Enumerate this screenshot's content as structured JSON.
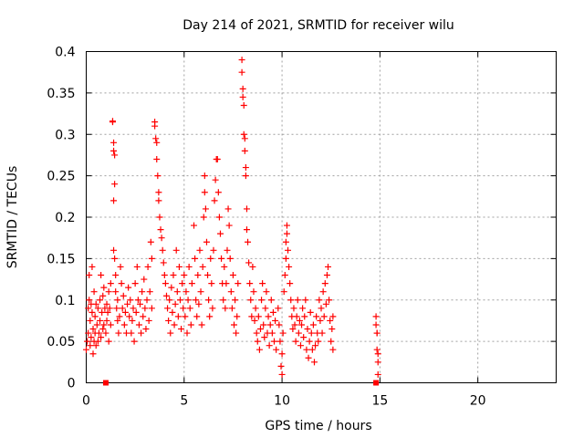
{
  "chart_data": {
    "type": "scatter",
    "title": "Day 214 of 2021, SRMTID for receiver wilu",
    "xlabel": "GPS time / hours",
    "ylabel": "SRMTID / TECUs",
    "xlim": [
      0,
      24
    ],
    "ylim": [
      0,
      0.4
    ],
    "xticks": [
      0,
      5,
      10,
      15,
      20
    ],
    "xtick_labels": [
      "0",
      "5",
      "10",
      "15",
      "20"
    ],
    "yticks": [
      0,
      0.05,
      0.1,
      0.15,
      0.2,
      0.25,
      0.3,
      0.35,
      0.4
    ],
    "ytick_labels": [
      "0",
      "0.05",
      "0.1",
      "0.15",
      "0.2",
      "0.25",
      "0.3",
      "0.35",
      "0.4"
    ],
    "grid": true,
    "marker": "plus",
    "color": "#ff0000",
    "square_markers": [
      {
        "x": 1.0,
        "y": 0.0
      },
      {
        "x": 14.8,
        "y": 0.0
      }
    ],
    "series": [
      {
        "points": [
          [
            0.0,
            0.04
          ],
          [
            0.05,
            0.05
          ],
          [
            0.1,
            0.06
          ],
          [
            0.1,
            0.09
          ],
          [
            0.15,
            0.13
          ],
          [
            0.15,
            0.1
          ],
          [
            0.2,
            0.045
          ],
          [
            0.2,
            0.075
          ],
          [
            0.25,
            0.095
          ],
          [
            0.25,
            0.055
          ],
          [
            0.3,
            0.14
          ],
          [
            0.3,
            0.085
          ],
          [
            0.35,
            0.065
          ],
          [
            0.35,
            0.035
          ],
          [
            0.4,
            0.05
          ],
          [
            0.4,
            0.11
          ],
          [
            0.45,
            0.08
          ],
          [
            0.45,
            0.06
          ],
          [
            0.5,
            0.045
          ],
          [
            0.5,
            0.095
          ],
          [
            0.55,
            0.07
          ],
          [
            0.6,
            0.05
          ],
          [
            0.6,
            0.09
          ],
          [
            0.65,
            0.06
          ],
          [
            0.7,
            0.075
          ],
          [
            0.7,
            0.1
          ],
          [
            0.75,
            0.13
          ],
          [
            0.75,
            0.055
          ],
          [
            0.8,
            0.085
          ],
          [
            0.85,
            0.065
          ],
          [
            0.85,
            0.105
          ],
          [
            0.9,
            0.115
          ],
          [
            0.9,
            0.07
          ],
          [
            0.95,
            0.09
          ],
          [
            1.0,
            0.06
          ],
          [
            1.05,
            0.075
          ],
          [
            1.05,
            0.095
          ],
          [
            1.1,
            0.085
          ],
          [
            1.15,
            0.11
          ],
          [
            1.15,
            0.05
          ],
          [
            1.2,
            0.09
          ],
          [
            1.25,
            0.07
          ],
          [
            1.25,
            0.12
          ],
          [
            1.35,
            0.315
          ],
          [
            1.35,
            0.316
          ],
          [
            1.4,
            0.29
          ],
          [
            1.4,
            0.28
          ],
          [
            1.45,
            0.275
          ],
          [
            1.45,
            0.24
          ],
          [
            1.4,
            0.22
          ],
          [
            1.4,
            0.16
          ],
          [
            1.45,
            0.15
          ],
          [
            1.5,
            0.13
          ],
          [
            1.5,
            0.11
          ],
          [
            1.55,
            0.09
          ],
          [
            1.6,
            0.1
          ],
          [
            1.6,
            0.075
          ],
          [
            1.65,
            0.06
          ],
          [
            1.7,
            0.08
          ],
          [
            1.75,
            0.14
          ],
          [
            1.8,
            0.12
          ],
          [
            1.85,
            0.09
          ],
          [
            1.9,
            0.105
          ],
          [
            1.95,
            0.07
          ],
          [
            2.0,
            0.085
          ],
          [
            2.05,
            0.06
          ],
          [
            2.1,
            0.095
          ],
          [
            2.15,
            0.115
          ],
          [
            2.2,
            0.08
          ],
          [
            2.25,
            0.1
          ],
          [
            2.3,
            0.06
          ],
          [
            2.35,
            0.075
          ],
          [
            2.4,
            0.09
          ],
          [
            2.45,
            0.05
          ],
          [
            2.5,
            0.12
          ],
          [
            2.55,
            0.085
          ],
          [
            2.6,
            0.14
          ],
          [
            2.65,
            0.1
          ],
          [
            2.7,
            0.07
          ],
          [
            2.75,
            0.095
          ],
          [
            2.8,
            0.06
          ],
          [
            2.85,
            0.11
          ],
          [
            2.9,
            0.08
          ],
          [
            2.95,
            0.125
          ],
          [
            3.0,
            0.09
          ],
          [
            3.05,
            0.065
          ],
          [
            3.1,
            0.1
          ],
          [
            3.15,
            0.14
          ],
          [
            3.2,
            0.075
          ],
          [
            3.25,
            0.11
          ],
          [
            3.3,
            0.17
          ],
          [
            3.35,
            0.15
          ],
          [
            3.35,
            0.09
          ],
          [
            3.5,
            0.315
          ],
          [
            3.5,
            0.31
          ],
          [
            3.55,
            0.295
          ],
          [
            3.6,
            0.29
          ],
          [
            3.6,
            0.27
          ],
          [
            3.65,
            0.25
          ],
          [
            3.7,
            0.23
          ],
          [
            3.7,
            0.22
          ],
          [
            3.75,
            0.2
          ],
          [
            3.8,
            0.185
          ],
          [
            3.85,
            0.175
          ],
          [
            3.9,
            0.16
          ],
          [
            3.95,
            0.145
          ],
          [
            4.0,
            0.13
          ],
          [
            4.05,
            0.12
          ],
          [
            4.1,
            0.105
          ],
          [
            4.15,
            0.09
          ],
          [
            4.2,
            0.075
          ],
          [
            4.25,
            0.1
          ],
          [
            4.3,
            0.06
          ],
          [
            4.35,
            0.115
          ],
          [
            4.4,
            0.085
          ],
          [
            4.45,
            0.13
          ],
          [
            4.5,
            0.07
          ],
          [
            4.55,
            0.095
          ],
          [
            4.6,
            0.16
          ],
          [
            4.65,
            0.11
          ],
          [
            4.7,
            0.08
          ],
          [
            4.75,
            0.14
          ],
          [
            4.8,
            0.1
          ],
          [
            4.85,
            0.065
          ],
          [
            4.9,
            0.12
          ],
          [
            4.95,
            0.09
          ],
          [
            5.0,
            0.13
          ],
          [
            5.05,
            0.08
          ],
          [
            5.1,
            0.11
          ],
          [
            5.15,
            0.06
          ],
          [
            5.2,
            0.1
          ],
          [
            5.25,
            0.14
          ],
          [
            5.3,
            0.09
          ],
          [
            5.35,
            0.07
          ],
          [
            5.4,
            0.12
          ],
          [
            5.5,
            0.19
          ],
          [
            5.55,
            0.15
          ],
          [
            5.6,
            0.1
          ],
          [
            5.65,
            0.08
          ],
          [
            5.7,
            0.13
          ],
          [
            5.75,
            0.095
          ],
          [
            5.8,
            0.16
          ],
          [
            5.85,
            0.11
          ],
          [
            5.9,
            0.07
          ],
          [
            5.95,
            0.14
          ],
          [
            6.0,
            0.2
          ],
          [
            6.05,
            0.23
          ],
          [
            6.05,
            0.25
          ],
          [
            6.1,
            0.21
          ],
          [
            6.15,
            0.17
          ],
          [
            6.2,
            0.13
          ],
          [
            6.25,
            0.1
          ],
          [
            6.3,
            0.08
          ],
          [
            6.35,
            0.15
          ],
          [
            6.4,
            0.12
          ],
          [
            6.45,
            0.09
          ],
          [
            6.5,
            0.16
          ],
          [
            6.55,
            0.22
          ],
          [
            6.6,
            0.245
          ],
          [
            6.65,
            0.27
          ],
          [
            6.7,
            0.27
          ],
          [
            6.75,
            0.23
          ],
          [
            6.8,
            0.2
          ],
          [
            6.85,
            0.18
          ],
          [
            6.9,
            0.15
          ],
          [
            6.95,
            0.12
          ],
          [
            7.0,
            0.1
          ],
          [
            7.05,
            0.14
          ],
          [
            7.1,
            0.09
          ],
          [
            7.15,
            0.12
          ],
          [
            7.2,
            0.16
          ],
          [
            7.25,
            0.21
          ],
          [
            7.3,
            0.19
          ],
          [
            7.35,
            0.15
          ],
          [
            7.4,
            0.11
          ],
          [
            7.45,
            0.09
          ],
          [
            7.5,
            0.13
          ],
          [
            7.55,
            0.07
          ],
          [
            7.6,
            0.1
          ],
          [
            7.65,
            0.06
          ],
          [
            7.7,
            0.08
          ],
          [
            7.75,
            0.12
          ],
          [
            7.95,
            0.39
          ],
          [
            7.95,
            0.375
          ],
          [
            8.0,
            0.355
          ],
          [
            8.0,
            0.345
          ],
          [
            8.05,
            0.335
          ],
          [
            8.05,
            0.3
          ],
          [
            8.1,
            0.295
          ],
          [
            8.1,
            0.28
          ],
          [
            8.15,
            0.26
          ],
          [
            8.15,
            0.25
          ],
          [
            8.2,
            0.21
          ],
          [
            8.2,
            0.185
          ],
          [
            8.25,
            0.17
          ],
          [
            8.3,
            0.145
          ],
          [
            8.35,
            0.12
          ],
          [
            8.4,
            0.1
          ],
          [
            8.45,
            0.08
          ],
          [
            8.5,
            0.14
          ],
          [
            8.55,
            0.11
          ],
          [
            8.6,
            0.075
          ],
          [
            8.65,
            0.09
          ],
          [
            8.7,
            0.06
          ],
          [
            8.75,
            0.05
          ],
          [
            8.8,
            0.08
          ],
          [
            8.85,
            0.04
          ],
          [
            8.9,
            0.065
          ],
          [
            8.95,
            0.1
          ],
          [
            9.0,
            0.12
          ],
          [
            9.05,
            0.07
          ],
          [
            9.1,
            0.055
          ],
          [
            9.15,
            0.09
          ],
          [
            9.2,
            0.11
          ],
          [
            9.25,
            0.06
          ],
          [
            9.3,
            0.08
          ],
          [
            9.35,
            0.045
          ],
          [
            9.4,
            0.07
          ],
          [
            9.45,
            0.1
          ],
          [
            9.5,
            0.06
          ],
          [
            9.55,
            0.085
          ],
          [
            9.6,
            0.05
          ],
          [
            9.65,
            0.075
          ],
          [
            9.7,
            0.04
          ],
          [
            9.8,
            0.09
          ],
          [
            9.85,
            0.07
          ],
          [
            9.9,
            0.05
          ],
          [
            9.95,
            0.02
          ],
          [
            10.0,
            0.01
          ],
          [
            10.0,
            0.035
          ],
          [
            10.05,
            0.06
          ],
          [
            10.1,
            0.11
          ],
          [
            10.15,
            0.13
          ],
          [
            10.2,
            0.15
          ],
          [
            10.2,
            0.17
          ],
          [
            10.25,
            0.18
          ],
          [
            10.25,
            0.19
          ],
          [
            10.3,
            0.16
          ],
          [
            10.35,
            0.14
          ],
          [
            10.4,
            0.12
          ],
          [
            10.45,
            0.1
          ],
          [
            10.5,
            0.08
          ],
          [
            10.55,
            0.065
          ],
          [
            10.6,
            0.09
          ],
          [
            10.65,
            0.07
          ],
          [
            10.7,
            0.05
          ],
          [
            10.75,
            0.08
          ],
          [
            10.8,
            0.1
          ],
          [
            10.85,
            0.06
          ],
          [
            10.9,
            0.075
          ],
          [
            10.95,
            0.045
          ],
          [
            11.0,
            0.07
          ],
          [
            11.05,
            0.09
          ],
          [
            11.1,
            0.055
          ],
          [
            11.15,
            0.08
          ],
          [
            11.2,
            0.1
          ],
          [
            11.25,
            0.04
          ],
          [
            11.3,
            0.065
          ],
          [
            11.35,
            0.03
          ],
          [
            11.4,
            0.05
          ],
          [
            11.45,
            0.085
          ],
          [
            11.5,
            0.06
          ],
          [
            11.55,
            0.04
          ],
          [
            11.6,
            0.07
          ],
          [
            11.65,
            0.025
          ],
          [
            11.7,
            0.045
          ],
          [
            11.75,
            0.08
          ],
          [
            11.8,
            0.06
          ],
          [
            11.85,
            0.05
          ],
          [
            11.9,
            0.1
          ],
          [
            11.95,
            0.075
          ],
          [
            12.0,
            0.09
          ],
          [
            12.05,
            0.06
          ],
          [
            12.1,
            0.11
          ],
          [
            12.15,
            0.08
          ],
          [
            12.2,
            0.12
          ],
          [
            12.25,
            0.095
          ],
          [
            12.3,
            0.13
          ],
          [
            12.35,
            0.14
          ],
          [
            12.4,
            0.1
          ],
          [
            12.45,
            0.075
          ],
          [
            12.5,
            0.05
          ],
          [
            12.55,
            0.065
          ],
          [
            12.6,
            0.04
          ],
          [
            12.6,
            0.08
          ],
          [
            14.8,
            0.08
          ],
          [
            14.8,
            0.07
          ],
          [
            14.85,
            0.06
          ],
          [
            14.85,
            0.04
          ],
          [
            14.9,
            0.035
          ],
          [
            14.9,
            0.025
          ],
          [
            14.9,
            0.01
          ],
          [
            14.85,
            0.06
          ]
        ]
      }
    ]
  }
}
